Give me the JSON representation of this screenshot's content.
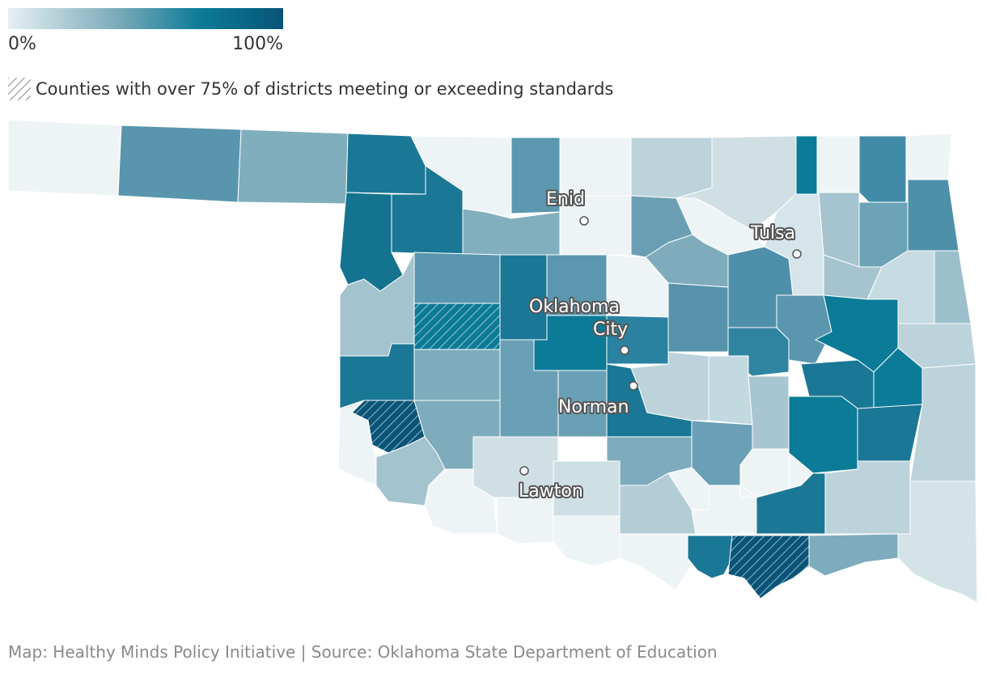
{
  "legend": {
    "min_label": "0%",
    "max_label": "100%",
    "colors": [
      "#e6eff2",
      "#7aaab9",
      "#0b7b97",
      "#0a5478"
    ],
    "hatch_label": "Counties with over 75% of districts meeting or exceeding standards"
  },
  "cities": [
    {
      "name": "Enid"
    },
    {
      "name": "Tulsa"
    },
    {
      "name": "Oklahoma",
      "name2": "City"
    },
    {
      "name": "Norman"
    },
    {
      "name": "Lawton"
    }
  ],
  "credit": "Map: Healthy Minds Policy Initiative | Source: Oklahoma State Department of Education"
}
